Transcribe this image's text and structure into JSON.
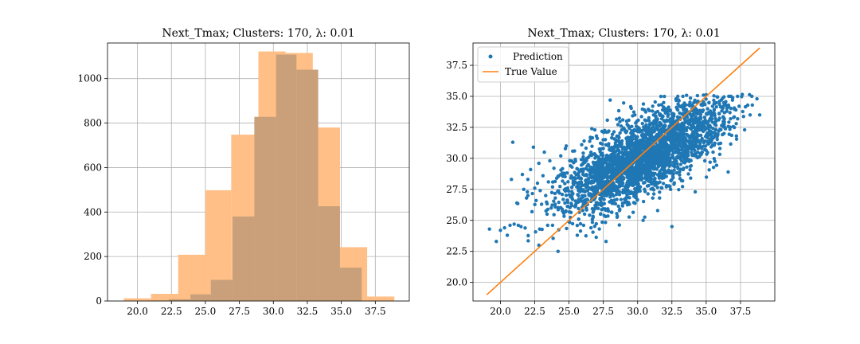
{
  "chart_data": [
    {
      "type": "histogram",
      "title": "Next_Tmax; Clusters: 170, λ: 0.01",
      "xlabel": "",
      "ylabel": "",
      "xlim": [
        17.8,
        40.0
      ],
      "ylim": [
        0,
        1160
      ],
      "xticks": [
        "20.0",
        "22.5",
        "25.0",
        "27.5",
        "30.0",
        "32.5",
        "35.0",
        "37.5"
      ],
      "xtick_values": [
        20.0,
        22.5,
        25.0,
        27.5,
        30.0,
        32.5,
        35.0,
        37.5
      ],
      "yticks": [
        "0",
        "200",
        "400",
        "600",
        "800",
        "1000"
      ],
      "ytick_values": [
        0,
        200,
        400,
        600,
        800,
        1000
      ],
      "grid": true,
      "series": [
        {
          "color": "#ffbf86",
          "bins": [
            {
              "x0": 19.0,
              "x1": 21.0,
              "count": 12
            },
            {
              "x0": 21.0,
              "x1": 23.0,
              "count": 32
            },
            {
              "x0": 23.0,
              "x1": 25.0,
              "count": 208
            },
            {
              "x0": 25.0,
              "x1": 26.9,
              "count": 498
            },
            {
              "x0": 26.9,
              "x1": 28.9,
              "count": 748
            },
            {
              "x0": 28.9,
              "x1": 30.9,
              "count": 1122
            },
            {
              "x0": 30.9,
              "x1": 32.9,
              "count": 1115
            },
            {
              "x0": 32.9,
              "x1": 34.9,
              "count": 780
            },
            {
              "x0": 34.9,
              "x1": 36.9,
              "count": 242
            },
            {
              "x0": 36.9,
              "x1": 38.9,
              "count": 20
            }
          ]
        },
        {
          "color": "#c9a07a",
          "bins": [
            {
              "x0": 20.7,
              "x1": 22.3,
              "count": 2
            },
            {
              "x0": 22.3,
              "x1": 23.9,
              "count": 8
            },
            {
              "x0": 23.9,
              "x1": 25.4,
              "count": 30
            },
            {
              "x0": 25.4,
              "x1": 27.0,
              "count": 95
            },
            {
              "x0": 27.0,
              "x1": 28.6,
              "count": 380
            },
            {
              "x0": 28.6,
              "x1": 30.2,
              "count": 828
            },
            {
              "x0": 30.2,
              "x1": 31.7,
              "count": 1108
            },
            {
              "x0": 31.7,
              "x1": 33.3,
              "count": 1040
            },
            {
              "x0": 33.3,
              "x1": 34.9,
              "count": 426
            },
            {
              "x0": 34.9,
              "x1": 36.5,
              "count": 150
            }
          ]
        }
      ]
    },
    {
      "type": "scatter",
      "title": "Next_Tmax; Clusters: 170, λ: 0.01",
      "xlabel": "",
      "ylabel": "",
      "xlim": [
        18.0,
        40.0
      ],
      "ylim": [
        18.5,
        39.3
      ],
      "xticks": [
        "20.0",
        "22.5",
        "25.0",
        "27.5",
        "30.0",
        "32.5",
        "35.0",
        "37.5"
      ],
      "xtick_values": [
        20.0,
        22.5,
        25.0,
        27.5,
        30.0,
        32.5,
        35.0,
        37.5
      ],
      "yticks": [
        "20.0",
        "22.5",
        "25.0",
        "27.5",
        "30.0",
        "32.5",
        "35.0",
        "37.5"
      ],
      "ytick_values": [
        20.0,
        22.5,
        25.0,
        27.5,
        30.0,
        32.5,
        35.0,
        37.5
      ],
      "grid": true,
      "legend_position": "top-left",
      "series": [
        {
          "name": "Prediction",
          "kind": "points",
          "color": "#1f77b4",
          "points": [
            [
              19.2,
              24.3
            ],
            [
              19.7,
              23.3
            ],
            [
              20.0,
              24.2
            ],
            [
              20.3,
              24.4
            ],
            [
              20.5,
              23.8
            ],
            [
              20.7,
              24.6
            ],
            [
              20.8,
              28.3
            ],
            [
              20.9,
              31.3
            ],
            [
              21.0,
              24.7
            ],
            [
              21.2,
              26.4
            ],
            [
              21.3,
              24.6
            ],
            [
              21.5,
              24.5
            ],
            [
              21.6,
              28.7
            ],
            [
              21.7,
              27.5
            ],
            [
              21.9,
              26.8
            ],
            [
              22.0,
              28.3
            ],
            [
              22.0,
              27.0
            ],
            [
              22.2,
              29.1
            ],
            [
              22.3,
              25.7
            ],
            [
              22.4,
              30.9
            ],
            [
              22.5,
              27.6
            ],
            [
              22.6,
              26.6
            ],
            [
              22.7,
              28.0
            ],
            [
              22.8,
              23.0
            ],
            [
              22.8,
              29.6
            ],
            [
              22.9,
              27.4
            ],
            [
              23.0,
              26.3
            ],
            [
              23.1,
              28.6
            ],
            [
              23.2,
              30.5
            ],
            [
              23.3,
              27.0
            ],
            [
              23.4,
              25.5
            ],
            [
              23.5,
              28.1
            ],
            [
              23.6,
              29.8
            ],
            [
              23.7,
              26.0
            ],
            [
              23.8,
              27.7
            ],
            [
              23.8,
              24.6
            ],
            [
              23.9,
              29.2
            ],
            [
              24.0,
              26.8
            ],
            [
              24.1,
              28.4
            ],
            [
              24.2,
              22.5
            ],
            [
              24.3,
              27.2
            ],
            [
              24.4,
              30.2
            ],
            [
              24.5,
              25.9
            ],
            [
              24.6,
              28.8
            ],
            [
              24.7,
              26.4
            ],
            [
              24.8,
              31.0
            ],
            [
              24.9,
              27.6
            ],
            [
              25.0,
              24.9
            ],
            [
              25.1,
              29.4
            ],
            [
              25.2,
              26.9
            ],
            [
              25.3,
              28.0
            ],
            [
              25.4,
              30.6
            ],
            [
              25.5,
              26.3
            ],
            [
              25.6,
              23.8
            ],
            [
              25.7,
              28.6
            ],
            [
              25.8,
              27.3
            ],
            [
              25.9,
              29.9
            ],
            [
              26.0,
              25.8
            ],
            [
              26.1,
              31.4
            ],
            [
              26.2,
              28.2
            ],
            [
              26.3,
              26.7
            ],
            [
              26.4,
              29.5
            ],
            [
              26.5,
              27.6
            ],
            [
              26.6,
              24.4
            ],
            [
              26.7,
              30.3
            ],
            [
              26.8,
              28.9
            ],
            [
              26.9,
              26.2
            ],
            [
              27.0,
              31.8
            ],
            [
              27.1,
              27.9
            ],
            [
              27.2,
              29.6
            ],
            [
              27.3,
              25.5
            ],
            [
              27.4,
              28.4
            ],
            [
              27.5,
              30.8
            ],
            [
              27.6,
              27.0
            ],
            [
              27.7,
              23.3
            ],
            [
              27.8,
              29.2
            ],
            [
              27.9,
              32.2
            ],
            [
              28.0,
              28.0
            ],
            [
              28.0,
              34.7
            ],
            [
              28.1,
              26.6
            ],
            [
              28.2,
              30.4
            ],
            [
              28.3,
              28.7
            ],
            [
              28.4,
              31.5
            ],
            [
              28.5,
              27.3
            ],
            [
              28.6,
              29.8
            ],
            [
              28.7,
              25.9
            ],
            [
              28.8,
              32.6
            ],
            [
              28.9,
              28.9
            ],
            [
              29.0,
              30.9
            ],
            [
              29.1,
              27.7
            ],
            [
              29.2,
              33.0
            ],
            [
              29.3,
              29.3
            ],
            [
              29.4,
              26.3
            ],
            [
              29.5,
              31.7
            ],
            [
              29.6,
              28.4
            ],
            [
              29.7,
              30.2
            ],
            [
              29.8,
              33.5
            ],
            [
              29.9,
              27.2
            ],
            [
              30.0,
              29.6
            ],
            [
              30.1,
              32.3
            ],
            [
              30.2,
              28.7
            ],
            [
              30.3,
              31.0
            ],
            [
              30.4,
              25.0
            ],
            [
              30.5,
              33.9
            ],
            [
              30.6,
              29.1
            ],
            [
              30.7,
              30.6
            ],
            [
              30.8,
              27.8
            ],
            [
              30.9,
              32.7
            ],
            [
              31.0,
              29.9
            ],
            [
              31.1,
              34.2
            ],
            [
              31.2,
              28.3
            ],
            [
              31.3,
              31.4
            ],
            [
              31.4,
              33.1
            ],
            [
              31.5,
              30.3
            ],
            [
              31.6,
              26.8
            ],
            [
              31.7,
              32.0
            ],
            [
              31.8,
              29.5
            ],
            [
              31.9,
              34.5
            ],
            [
              32.0,
              31.1
            ],
            [
              32.1,
              28.9
            ],
            [
              32.2,
              33.4
            ],
            [
              32.3,
              30.7
            ],
            [
              32.4,
              32.5
            ],
            [
              32.5,
              24.5
            ],
            [
              32.6,
              31.8
            ],
            [
              32.7,
              29.9
            ],
            [
              32.8,
              34.8
            ],
            [
              32.9,
              33.0
            ],
            [
              33.0,
              30.4
            ],
            [
              33.1,
              32.2
            ],
            [
              33.2,
              28.2
            ],
            [
              33.3,
              35.0
            ],
            [
              33.4,
              31.5
            ],
            [
              33.5,
              33.7
            ],
            [
              33.6,
              30.0
            ],
            [
              33.7,
              32.8
            ],
            [
              33.8,
              34.3
            ],
            [
              33.9,
              29.4
            ],
            [
              34.0,
              31.9
            ],
            [
              34.1,
              33.5
            ],
            [
              34.2,
              27.3
            ],
            [
              34.3,
              32.4
            ],
            [
              34.4,
              34.6
            ],
            [
              34.5,
              30.9
            ],
            [
              34.6,
              33.2
            ],
            [
              34.7,
              31.6
            ],
            [
              34.8,
              35.1
            ],
            [
              34.9,
              29.8
            ],
            [
              35.0,
              32.9
            ],
            [
              35.1,
              34.0
            ],
            [
              35.2,
              31.2
            ],
            [
              35.3,
              33.6
            ],
            [
              35.5,
              30.5
            ],
            [
              35.6,
              34.4
            ],
            [
              35.7,
              32.3
            ],
            [
              35.9,
              33.1
            ],
            [
              36.0,
              30.8
            ],
            [
              36.1,
              34.7
            ],
            [
              36.3,
              32.0
            ],
            [
              36.5,
              33.8
            ],
            [
              36.6,
              28.9
            ],
            [
              36.8,
              35.0
            ],
            [
              37.0,
              33.3
            ],
            [
              37.2,
              31.8
            ],
            [
              37.4,
              34.2
            ],
            [
              37.8,
              32.3
            ],
            [
              38.2,
              33.5
            ],
            [
              38.7,
              34.8
            ],
            [
              38.9,
              33.5
            ]
          ]
        },
        {
          "name": "True Value",
          "kind": "line",
          "color": "#ff7f0e",
          "points": [
            [
              19.0,
              19.0
            ],
            [
              38.9,
              38.9
            ]
          ]
        }
      ]
    }
  ]
}
